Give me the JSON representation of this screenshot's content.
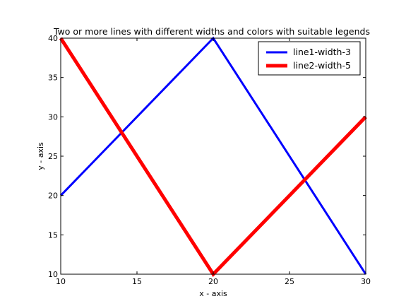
{
  "chart_data": {
    "type": "line",
    "title": "Two or more lines with different widths and colors with suitable legends",
    "xlabel": "x - axis",
    "ylabel": "y - axis",
    "xlim": [
      10,
      30
    ],
    "ylim": [
      10,
      40
    ],
    "xticks": [
      10,
      15,
      20,
      25,
      30
    ],
    "yticks": [
      10,
      15,
      20,
      25,
      30,
      35,
      40
    ],
    "grid": false,
    "legend": "top-right",
    "series": [
      {
        "name": "line1-width-3",
        "color": "#0000ff",
        "line_width": 3,
        "x": [
          10,
          20,
          30
        ],
        "y": [
          20,
          40,
          10
        ]
      },
      {
        "name": "line2-width-5",
        "color": "#ff0000",
        "line_width": 5,
        "x": [
          10,
          20,
          30
        ],
        "y": [
          40,
          10,
          30
        ]
      }
    ]
  }
}
